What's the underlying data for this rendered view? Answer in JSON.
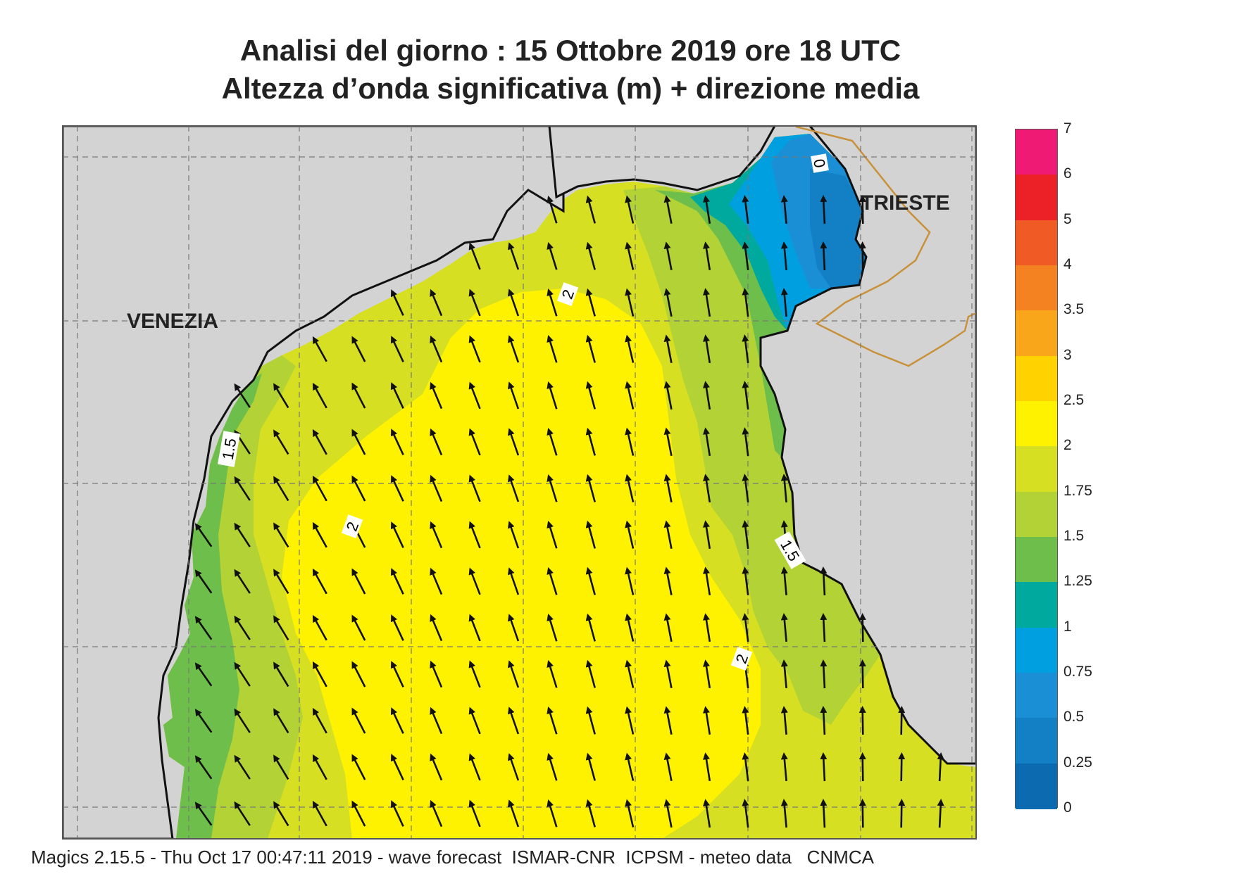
{
  "title_line1": "Analisi del giorno :  15  Ottobre  2019   ore 18 UTC",
  "title_line2": "Altezza d’onda significativa (m) + direzione media",
  "cities": {
    "venezia": "VENEZIA",
    "trieste": "TRIESTE"
  },
  "contour_labels": [
    {
      "text": "2"
    },
    {
      "text": "2"
    },
    {
      "text": "2"
    },
    {
      "text": "1.5"
    },
    {
      "text": "1.5"
    },
    {
      "text": "0"
    }
  ],
  "colorbar": {
    "labels": [
      "7",
      "6",
      "5",
      "4",
      "3.5",
      "3",
      "2.5",
      "2",
      "1.75",
      "1.5",
      "1.25",
      "1",
      "0.75",
      "0.5",
      "0.25",
      "0"
    ],
    "colors": [
      "#ee1a74",
      "#ec2127",
      "#f05a25",
      "#f58220",
      "#faa61a",
      "#ffd200",
      "#fff200",
      "#d7df23",
      "#b2d235",
      "#6dbe4b",
      "#00a99d",
      "#00a0e0",
      "#1b8fd6",
      "#137fc4",
      "#0c6bb0"
    ]
  },
  "map_colors": {
    "land": "#d3d3d3",
    "sea_2": "#fff200",
    "sea_175": "#d7df23",
    "sea_15": "#b2d235",
    "sea_125": "#6dbe4b",
    "sea_1": "#00a99d",
    "sea_075": "#00a0e0",
    "sea_05": "#1b8fd6",
    "sea_025": "#137fc4",
    "border": "#c8913a"
  },
  "footer": "Magics 2.15.5 - Thu Oct 17 00:47:11 2019 - wave forecast  ISMAR-CNR  ICPSM - meteo data   CNMCA"
}
